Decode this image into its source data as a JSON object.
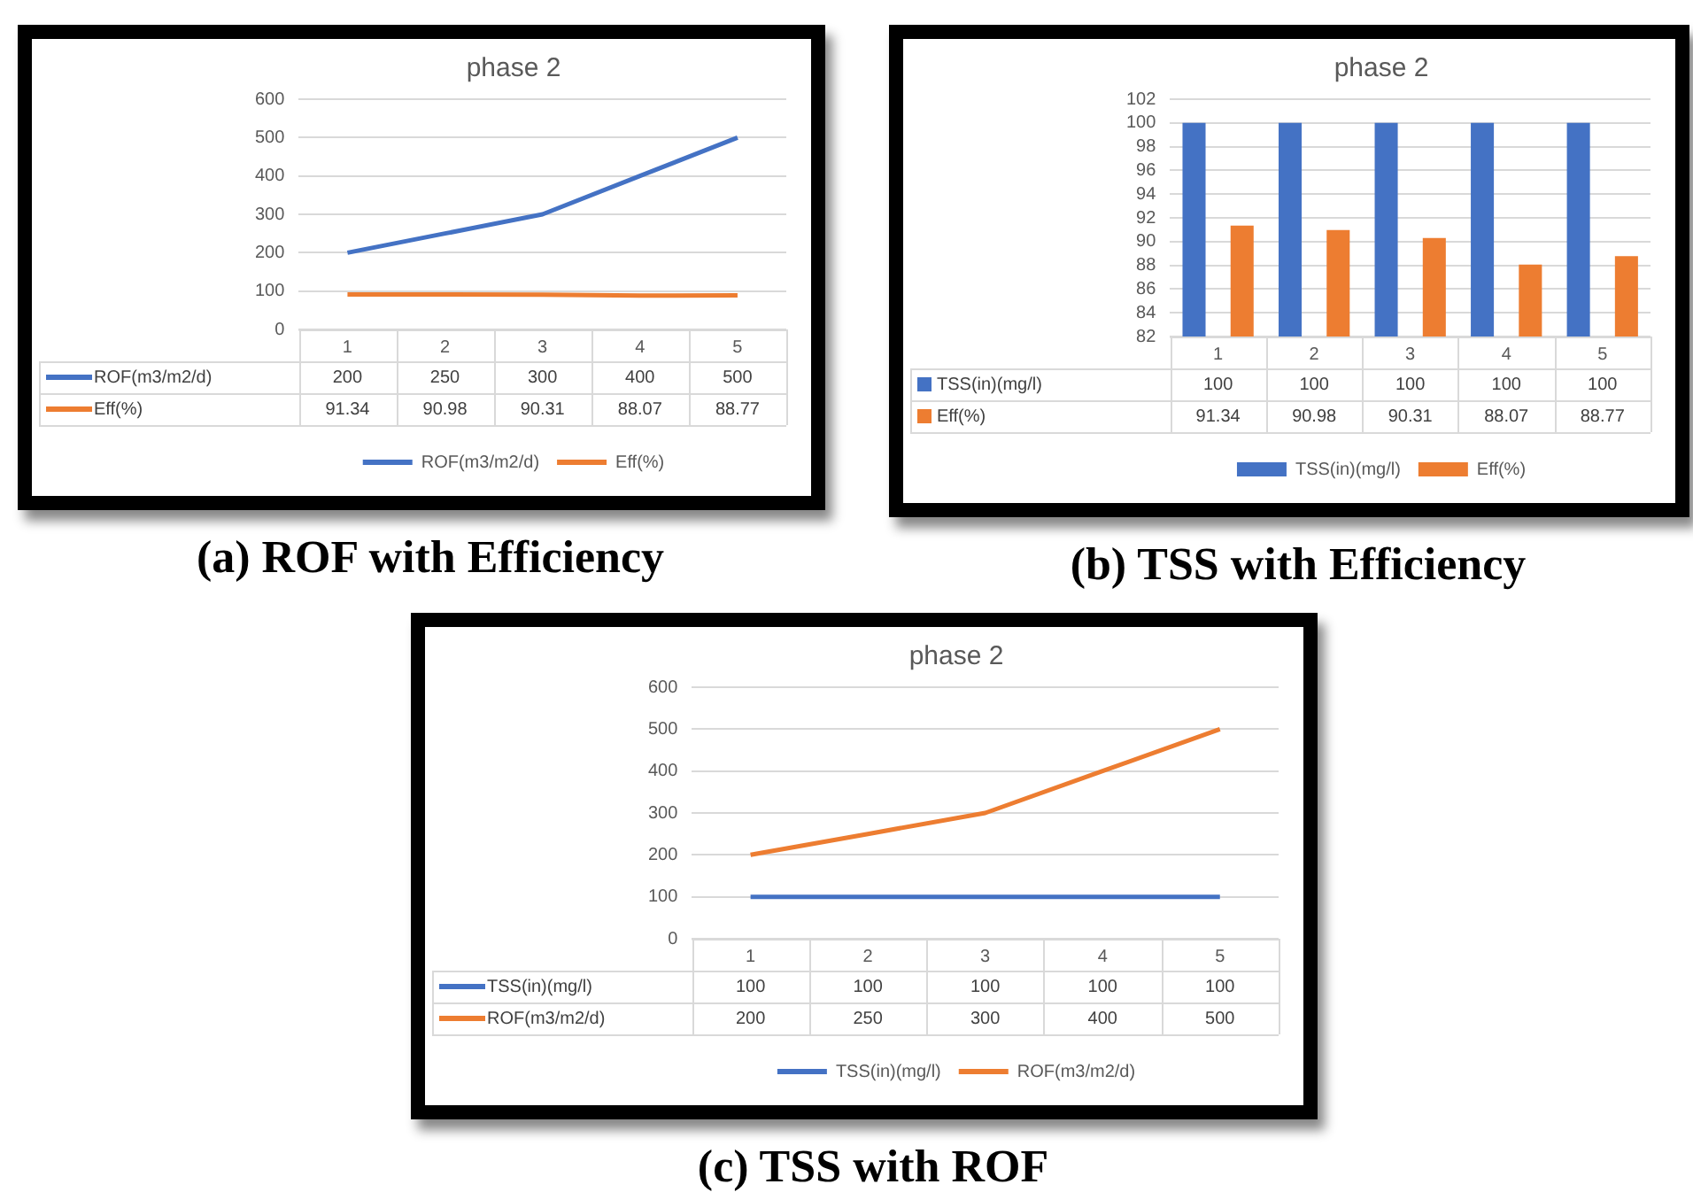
{
  "chart_data": [
    {
      "type": "line",
      "title": "phase 2",
      "categories": [
        "1",
        "2",
        "3",
        "4",
        "5"
      ],
      "series": [
        {
          "name": "ROF(m3/m2/d)",
          "color": "#4472c4",
          "values": [
            200,
            250,
            300,
            400,
            500
          ]
        },
        {
          "name": "Eff(%)",
          "color": "#ed7d31",
          "values": [
            91.34,
            90.98,
            90.31,
            88.07,
            88.77
          ]
        }
      ],
      "ylim": [
        0,
        600
      ],
      "yticks": [
        0,
        100,
        200,
        300,
        400,
        500,
        600
      ],
      "grid": "y",
      "legend": "bottom",
      "marker": "none",
      "data_labels": true,
      "annotations": [
        "(a) ROF with Efficiency"
      ]
    },
    {
      "type": "bar",
      "title": "phase 2",
      "categories": [
        "1",
        "2",
        "3",
        "4",
        "5"
      ],
      "series": [
        {
          "name": "TSS(in)(mg/l)",
          "color": "#4472c4",
          "values": [
            100,
            100,
            100,
            100,
            100
          ]
        },
        {
          "name": "Eff(%)",
          "color": "#ed7d31",
          "values": [
            91.34,
            90.98,
            90.31,
            88.07,
            88.77
          ]
        }
      ],
      "ylim": [
        82,
        102
      ],
      "yticks": [
        82,
        84,
        86,
        88,
        90,
        92,
        94,
        96,
        98,
        100,
        102
      ],
      "grid": "y",
      "legend": "bottom",
      "data_labels": true,
      "annotations": [
        "(b) TSS with Efficiency"
      ]
    },
    {
      "type": "line",
      "title": "phase 2",
      "categories": [
        "1",
        "2",
        "3",
        "4",
        "5"
      ],
      "series": [
        {
          "name": "TSS(in)(mg/l)",
          "color": "#4472c4",
          "values": [
            100,
            100,
            100,
            100,
            100
          ]
        },
        {
          "name": "ROF(m3/m2/d)",
          "color": "#ed7d31",
          "values": [
            200,
            250,
            300,
            400,
            500
          ]
        }
      ],
      "ylim": [
        0,
        600
      ],
      "yticks": [
        0,
        100,
        200,
        300,
        400,
        500,
        600
      ],
      "grid": "y",
      "legend": "bottom",
      "marker": "none",
      "data_labels": true,
      "annotations": [
        "(c) TSS with ROF"
      ]
    }
  ]
}
